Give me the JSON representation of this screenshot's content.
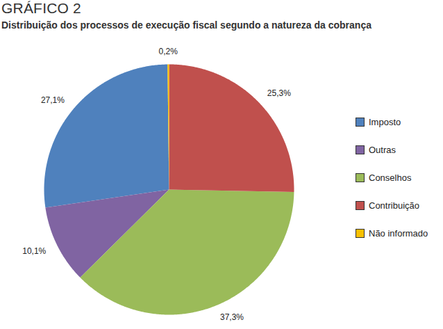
{
  "chart_data": {
    "type": "pie",
    "title": "GRÁFICO 2",
    "subtitle": "Distribuição dos processos de execução fiscal segundo a natureza da cobrança",
    "categories": [
      "Imposto",
      "Outras",
      "Conselhos",
      "Contribuição",
      "Não informado"
    ],
    "values": [
      27.1,
      10.1,
      37.3,
      25.3,
      0.2
    ],
    "value_labels": [
      "27,1%",
      "10,1%",
      "37,3%",
      "25,3%",
      "0,2%"
    ],
    "colors": [
      "#4f81bd",
      "#8064a2",
      "#9bbb59",
      "#c0504d",
      "#f9c000"
    ],
    "data_labels": true,
    "legend": "right"
  }
}
